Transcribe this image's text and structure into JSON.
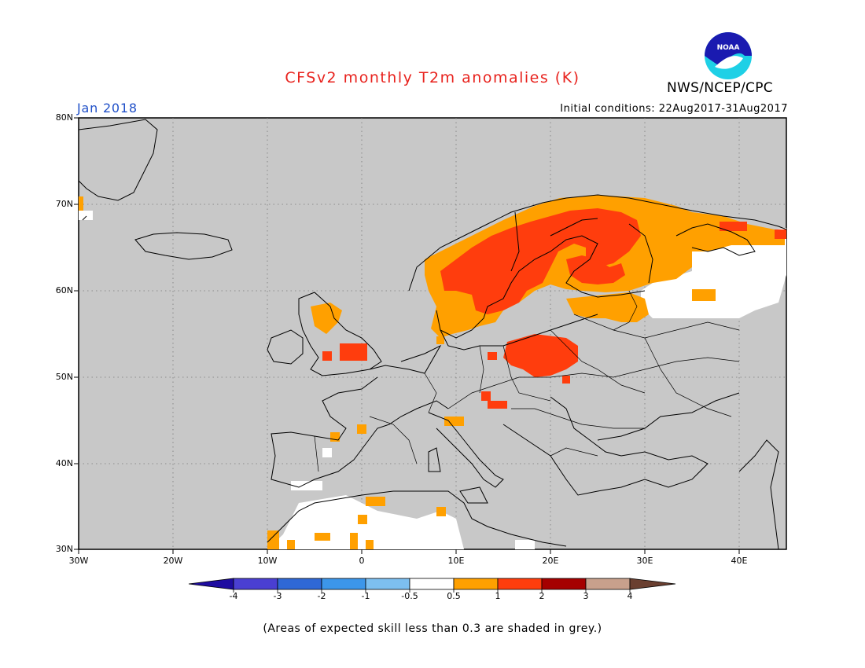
{
  "header": {
    "title": "CFSv2 monthly T2m anomalies (K)",
    "month": "Jan 2018",
    "initial_conditions": "Initial conditions: 22Aug2017-31Aug2017",
    "agency": "NWS/NCEP/CPC",
    "logo_text": "NOAA"
  },
  "axes": {
    "lat_labels": [
      "80N",
      "70N",
      "60N",
      "50N",
      "40N",
      "30N"
    ],
    "lon_labels": [
      "30W",
      "20W",
      "10W",
      "0",
      "10E",
      "20E",
      "30E",
      "40E"
    ]
  },
  "colorbar": {
    "ticks": [
      "-4",
      "-3",
      "-2",
      "-1",
      "-0.5",
      "0.5",
      "1",
      "2",
      "3",
      "4"
    ],
    "colors": [
      "#1e0ca0",
      "#4a3fd2",
      "#2f68d6",
      "#3c96ea",
      "#7dbff0",
      "#ffffff",
      "#ffa000",
      "#ff3d0d",
      "#a50000",
      "#c8a08c",
      "#6a3f30"
    ]
  },
  "note": "(Areas of expected skill less than 0.3 are shaded in grey.)",
  "colors": {
    "land_grey": "#c8c8c8",
    "title_red": "#e8231e",
    "month_blue": "#2050c8"
  }
}
